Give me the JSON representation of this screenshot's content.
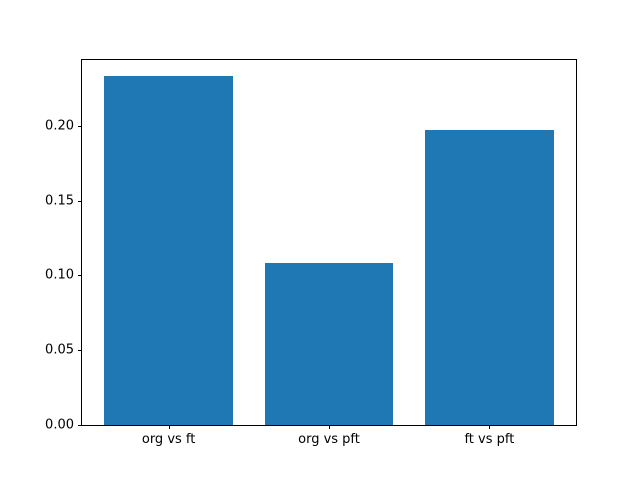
{
  "chart_data": {
    "type": "bar",
    "categories": [
      "org vs ft",
      "org vs pft",
      "ft vs pft"
    ],
    "values": [
      0.233,
      0.108,
      0.197
    ],
    "title": "",
    "xlabel": "",
    "ylabel": "",
    "ylim": [
      0,
      0.244
    ],
    "yticks": [
      0.0,
      0.05,
      0.1,
      0.15,
      0.2
    ],
    "ytick_labels": [
      "0.00",
      "0.05",
      "0.10",
      "0.15",
      "0.20"
    ],
    "bar_color": "#1f77b4",
    "bar_width_fraction": 0.8,
    "x_margin": 0.54,
    "grid": false,
    "legend": null
  }
}
